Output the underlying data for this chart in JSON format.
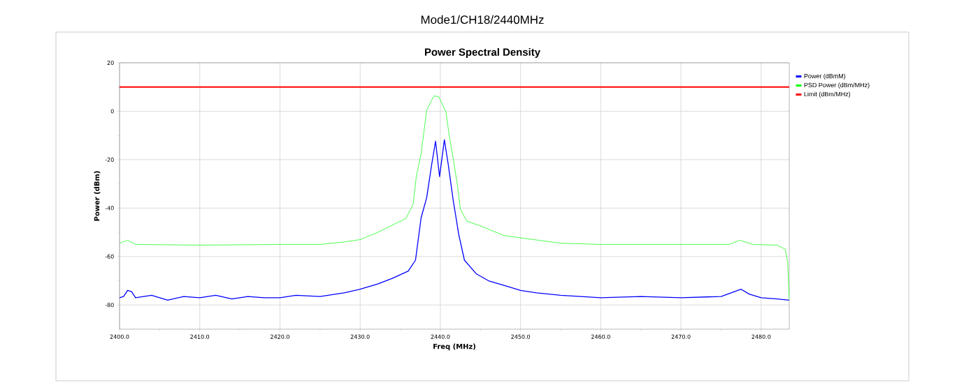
{
  "chart_data": {
    "type": "line",
    "title": "Mode1/CH18/2440MHz",
    "subtitle": "Power Spectral Density",
    "xlabel": "Freq (MHz)",
    "ylabel": "Power (dBm)",
    "xlim": [
      2400,
      2483.5
    ],
    "ylim": [
      -90,
      20
    ],
    "xticks": [
      {
        "value": 2400,
        "label": "2400.0"
      },
      {
        "value": 2410,
        "label": "2410.0"
      },
      {
        "value": 2420,
        "label": "2420.0"
      },
      {
        "value": 2430,
        "label": "2430.0"
      },
      {
        "value": 2440,
        "label": "2440.0"
      },
      {
        "value": 2450,
        "label": "2450.0"
      },
      {
        "value": 2460,
        "label": "2460.0"
      },
      {
        "value": 2470,
        "label": "2470.0"
      },
      {
        "value": 2480,
        "label": "2480.0"
      }
    ],
    "yticks": [
      20,
      0,
      -20,
      -40,
      -60,
      -80
    ],
    "grid": true,
    "legend": "top right",
    "marker": "none",
    "line_style": "solid",
    "series": [
      {
        "name": "Power (dBmM)",
        "color": "#0000ff",
        "x": [
          2400,
          2400.5,
          2401,
          2401.5,
          2402,
          2404,
          2406,
          2408,
          2410,
          2412,
          2414,
          2416,
          2418,
          2420,
          2422,
          2425,
          2428,
          2430,
          2432.2,
          2434,
          2436,
          2436.9,
          2437.6,
          2438.3,
          2438.9,
          2439.4,
          2439.9,
          2440.5,
          2441.0,
          2441.6,
          2442.3,
          2443.0,
          2444.5,
          2446,
          2448,
          2450,
          2452,
          2455,
          2460,
          2465,
          2470,
          2475,
          2477.5,
          2478.5,
          2480,
          2482,
          2483.5
        ],
        "values": [
          -77,
          -76.5,
          -74,
          -74.5,
          -77,
          -76,
          -78,
          -76.5,
          -77,
          -76,
          -77.5,
          -76.5,
          -77,
          -77,
          -76,
          -76.5,
          -75,
          -73.5,
          -71.3,
          -69,
          -66,
          -61.5,
          -44,
          -35.6,
          -22.4,
          -12.4,
          -27,
          -11.8,
          -22.4,
          -36.8,
          -51,
          -61.5,
          -67.2,
          -70,
          -72,
          -74,
          -75,
          -76,
          -77,
          -76.5,
          -77,
          -76.5,
          -73.5,
          -75.5,
          -77,
          -77.5,
          -78
        ]
      },
      {
        "name": "PSD Power (dBm/MHz)",
        "color": "#00ff00",
        "x": [
          2400,
          2401,
          2402,
          2410,
          2420,
          2425,
          2428,
          2430,
          2432.2,
          2435.7,
          2436.6,
          2437.0,
          2437.6,
          2438.3,
          2439.2,
          2439.8,
          2440.7,
          2441.1,
          2441.6,
          2442.1,
          2442.5,
          2443.3,
          2444.7,
          2448,
          2455,
          2460,
          2470,
          2476,
          2477.3,
          2479,
          2482,
          2483,
          2483.3,
          2483.5
        ],
        "values": [
          -54.5,
          -53.3,
          -55,
          -55.3,
          -55,
          -55,
          -54,
          -53,
          -50,
          -44.3,
          -38.5,
          -27,
          -17.5,
          0.6,
          6.3,
          6,
          -0.3,
          -10,
          -19.5,
          -30,
          -40.5,
          -45.4,
          -47,
          -51.4,
          -54.5,
          -55,
          -55,
          -55,
          -53.3,
          -55,
          -55.3,
          -57,
          -62,
          -78
        ]
      },
      {
        "name": "Limit (dBm/MHz)",
        "color": "#ff0000",
        "x": [
          2400,
          2483.5
        ],
        "values": [
          10,
          10
        ]
      }
    ]
  }
}
